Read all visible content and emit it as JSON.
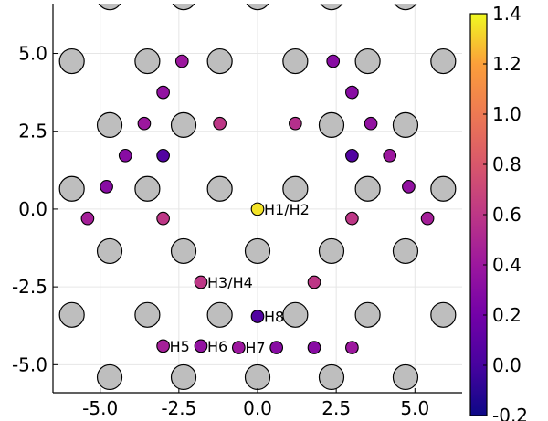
{
  "chart_data": {
    "type": "scatter",
    "title": "",
    "xlabel": "",
    "ylabel": "",
    "xlim": [
      -6.5,
      6.5
    ],
    "ylim": [
      -5.9,
      6.6
    ],
    "grid": true,
    "xticks": [
      -5.0,
      -2.5,
      0.0,
      2.5,
      5.0
    ],
    "xtick_labels": [
      "-5.0",
      "-2.5",
      "0.0",
      "2.5",
      "5.0"
    ],
    "yticks": [
      -5.0,
      -2.5,
      0.0,
      2.5,
      5.0
    ],
    "ytick_labels": [
      "-5.0",
      "-2.5",
      "0.0",
      "2.5",
      "5.0"
    ],
    "colormap": "plasma",
    "colorbar": {
      "range": [
        -0.2,
        1.4
      ],
      "ticks": [
        -0.2,
        0.0,
        0.2,
        0.4,
        0.6,
        0.8,
        1.0,
        1.2,
        1.4
      ],
      "tick_labels": [
        "-0.2",
        "0.0",
        "0.2",
        "0.4",
        "0.6",
        "0.8",
        "1.0",
        "1.2",
        "1.4"
      ]
    },
    "lattice_color": "#bebebe",
    "lattice_points": [
      {
        "x": -4.7,
        "y": 6.8
      },
      {
        "x": -2.35,
        "y": 6.8
      },
      {
        "x": 0.0,
        "y": 6.8
      },
      {
        "x": 2.35,
        "y": 6.8
      },
      {
        "x": 4.7,
        "y": 6.8
      },
      {
        "x": -5.9,
        "y": 4.75
      },
      {
        "x": -3.5,
        "y": 4.75
      },
      {
        "x": -1.2,
        "y": 4.75
      },
      {
        "x": 1.2,
        "y": 4.75
      },
      {
        "x": 3.5,
        "y": 4.75
      },
      {
        "x": 5.9,
        "y": 4.75
      },
      {
        "x": -4.7,
        "y": 2.7
      },
      {
        "x": -2.35,
        "y": 2.7
      },
      {
        "x": 2.35,
        "y": 2.7
      },
      {
        "x": 4.7,
        "y": 2.7
      },
      {
        "x": -5.9,
        "y": 0.65
      },
      {
        "x": -3.5,
        "y": 0.65
      },
      {
        "x": -1.2,
        "y": 0.65
      },
      {
        "x": 1.2,
        "y": 0.65
      },
      {
        "x": 3.5,
        "y": 0.65
      },
      {
        "x": 5.9,
        "y": 0.65
      },
      {
        "x": -4.7,
        "y": -1.35
      },
      {
        "x": -2.35,
        "y": -1.35
      },
      {
        "x": 0.0,
        "y": -1.35
      },
      {
        "x": 2.35,
        "y": -1.35
      },
      {
        "x": 4.7,
        "y": -1.35
      },
      {
        "x": -5.9,
        "y": -3.4
      },
      {
        "x": -3.5,
        "y": -3.4
      },
      {
        "x": -1.2,
        "y": -3.4
      },
      {
        "x": 1.2,
        "y": -3.4
      },
      {
        "x": 3.5,
        "y": -3.4
      },
      {
        "x": 5.9,
        "y": -3.4
      },
      {
        "x": -4.7,
        "y": -5.4
      },
      {
        "x": -2.35,
        "y": -5.4
      },
      {
        "x": 0.0,
        "y": -5.4
      },
      {
        "x": 2.35,
        "y": -5.4
      },
      {
        "x": 4.7,
        "y": -5.4
      }
    ],
    "adsorption_points": [
      {
        "x": -2.4,
        "y": 4.75,
        "value": 0.4
      },
      {
        "x": 2.4,
        "y": 4.75,
        "value": 0.3
      },
      {
        "x": -3.0,
        "y": 3.75,
        "value": 0.35
      },
      {
        "x": 3.0,
        "y": 3.75,
        "value": 0.3
      },
      {
        "x": -3.6,
        "y": 2.75,
        "value": 0.4
      },
      {
        "x": -1.2,
        "y": 2.75,
        "value": 0.6
      },
      {
        "x": 1.2,
        "y": 2.75,
        "value": 0.55
      },
      {
        "x": 3.6,
        "y": 2.75,
        "value": 0.35
      },
      {
        "x": -4.2,
        "y": 1.72,
        "value": 0.3
      },
      {
        "x": -3.0,
        "y": 1.72,
        "value": 0.05
      },
      {
        "x": 3.0,
        "y": 1.72,
        "value": 0.05
      },
      {
        "x": 4.2,
        "y": 1.72,
        "value": 0.4
      },
      {
        "x": -4.8,
        "y": 0.72,
        "value": 0.3
      },
      {
        "x": 4.8,
        "y": 0.72,
        "value": 0.35
      },
      {
        "x": -5.4,
        "y": -0.3,
        "value": 0.45
      },
      {
        "x": -3.0,
        "y": -0.3,
        "value": 0.6
      },
      {
        "x": 3.0,
        "y": -0.3,
        "value": 0.6
      },
      {
        "x": 5.4,
        "y": -0.3,
        "value": 0.45
      },
      {
        "x": 0.0,
        "y": 0.0,
        "value": 1.35,
        "label": "H1/H2"
      },
      {
        "x": -1.8,
        "y": -2.35,
        "value": 0.6,
        "label": "H3/H4"
      },
      {
        "x": 1.8,
        "y": -2.35,
        "value": 0.6
      },
      {
        "x": 0.0,
        "y": -3.45,
        "value": 0.05,
        "label": "H8"
      },
      {
        "x": -3.0,
        "y": -4.4,
        "value": 0.45,
        "label": "H5"
      },
      {
        "x": -1.8,
        "y": -4.4,
        "value": 0.35,
        "label": "H6"
      },
      {
        "x": -0.6,
        "y": -4.45,
        "value": 0.4,
        "label": "H7"
      },
      {
        "x": 0.6,
        "y": -4.45,
        "value": 0.3
      },
      {
        "x": 1.8,
        "y": -4.45,
        "value": 0.3
      },
      {
        "x": 3.0,
        "y": -4.45,
        "value": 0.4
      }
    ]
  }
}
